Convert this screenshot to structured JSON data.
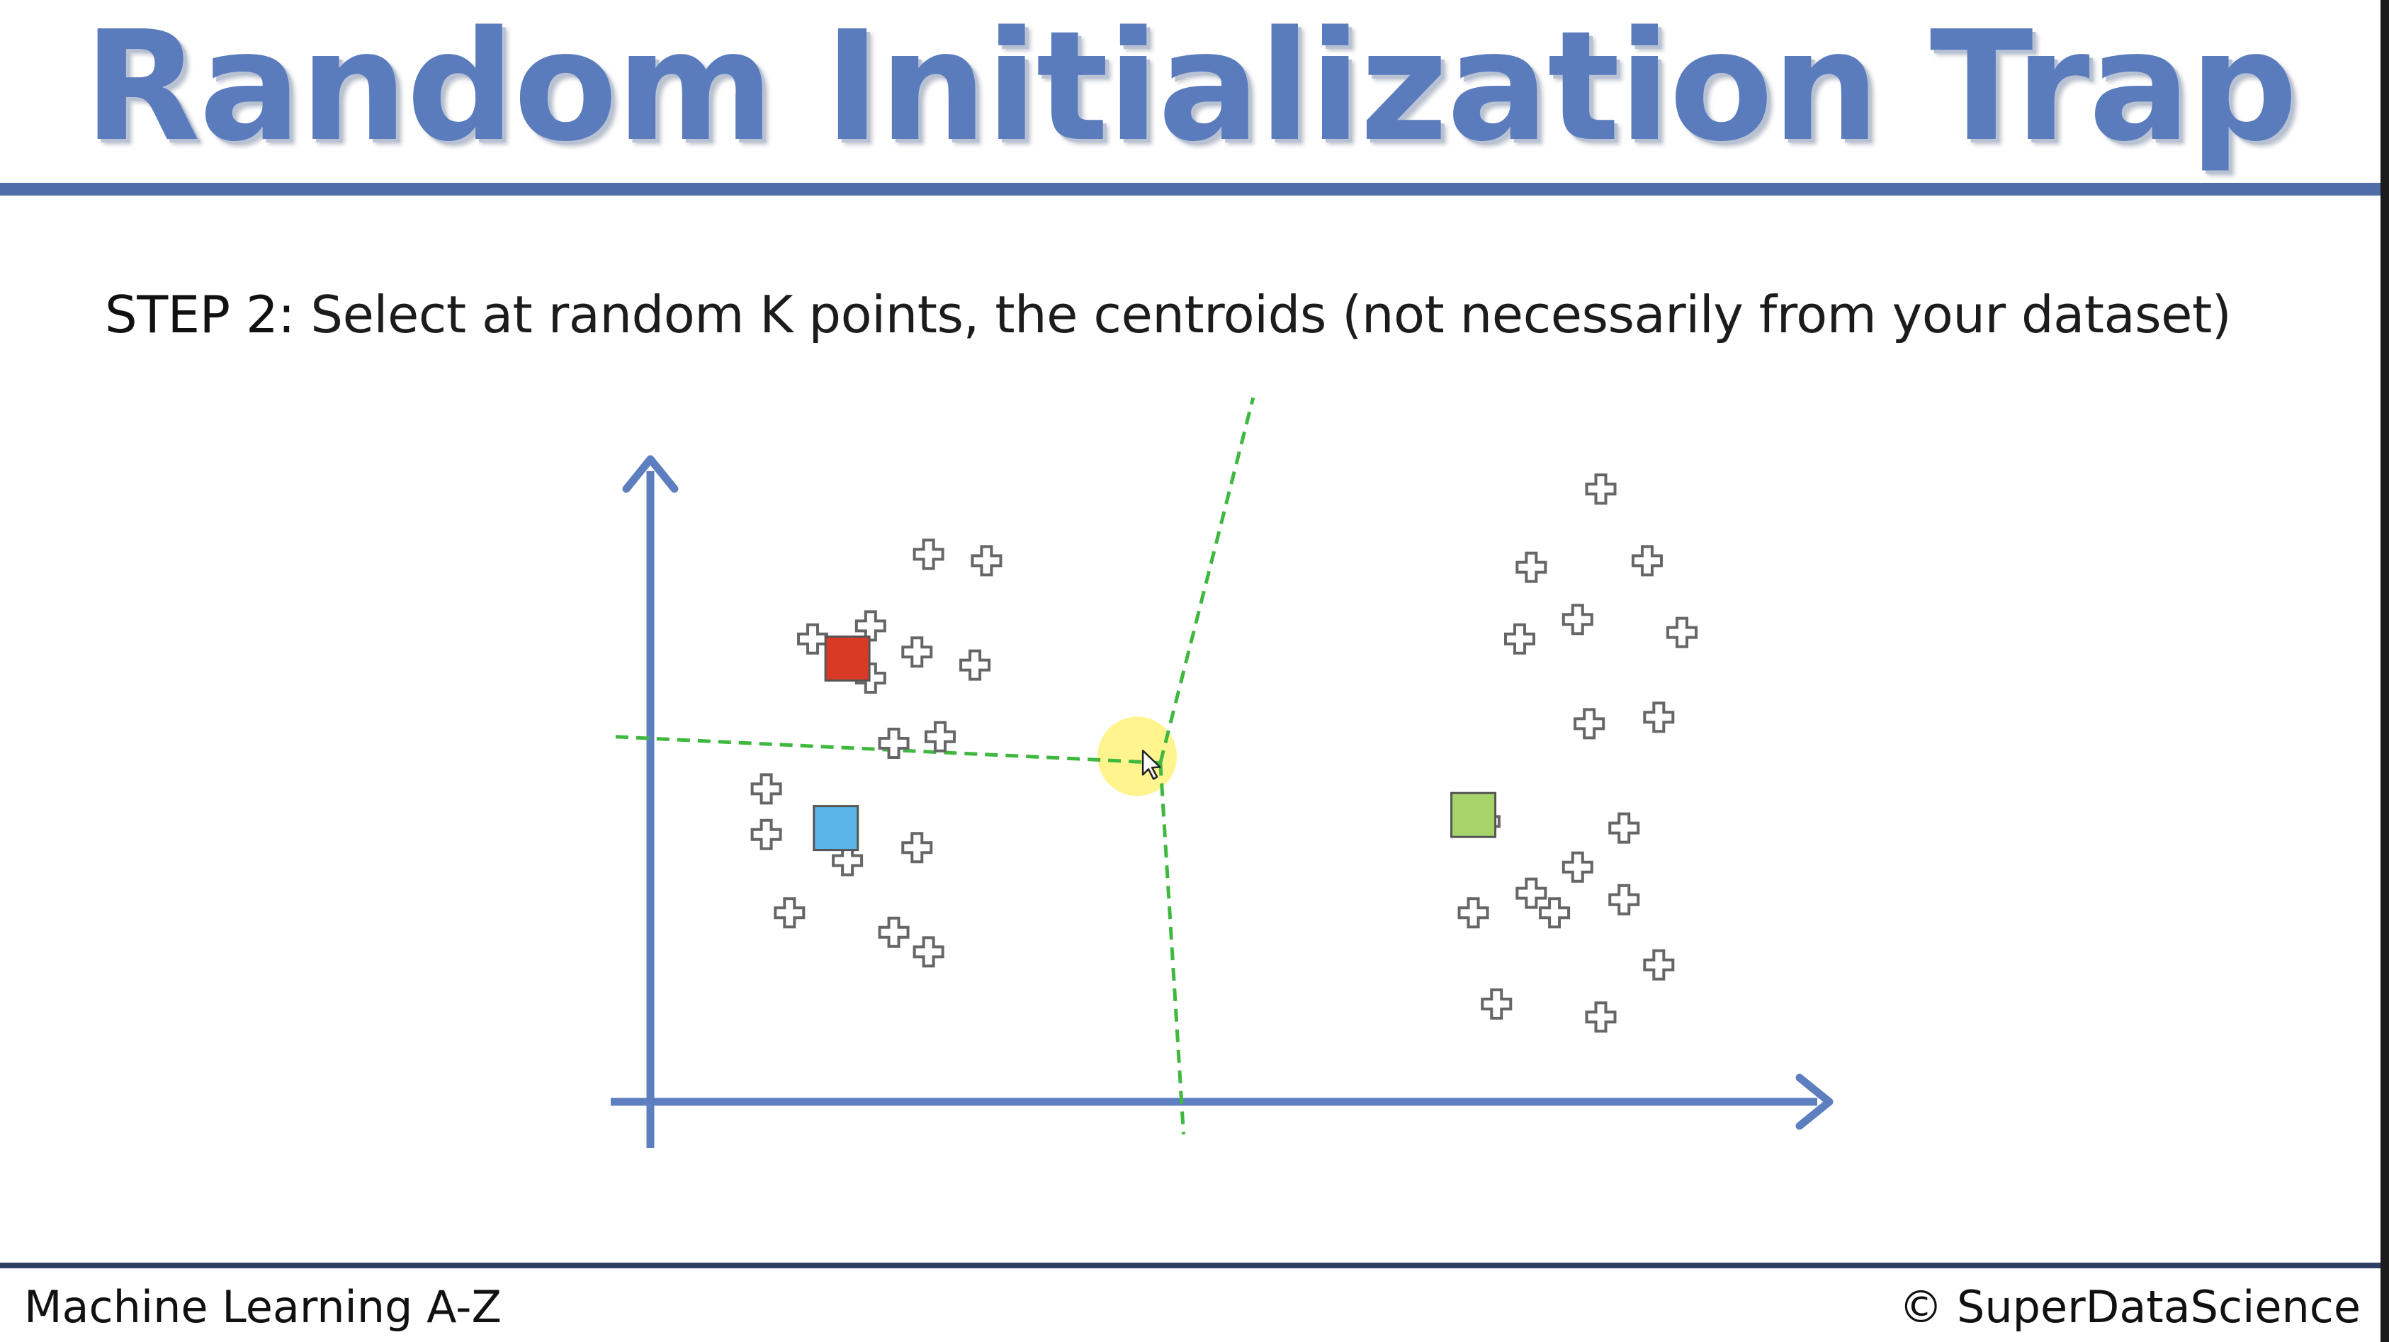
{
  "slide": {
    "title": "Random Initialization Trap",
    "step_label": "STEP 2:",
    "step_text": " Select at random K points, the centroids (not necessarily from your dataset)",
    "footer_left": "Machine Learning A-Z",
    "footer_right": "© SuperDataScience"
  },
  "colors": {
    "title": "#5a7cbd",
    "rule": "#4f6ea8",
    "axis": "#5d7fc0",
    "boundary": "#3fb83f",
    "centroid_red": "#d93a26",
    "centroid_blue": "#5ab6e8",
    "centroid_green": "#a6d46a",
    "cursor_highlight": "#fff27a"
  },
  "icons": [
    "plus-marker-icon",
    "mouse-pointer-icon"
  ],
  "chart_data": {
    "type": "scatter",
    "title": "",
    "xlabel": "",
    "ylabel": "",
    "xlim": [
      0,
      100
    ],
    "ylim": [
      0,
      100
    ],
    "grid": false,
    "series": [
      {
        "role": "data-points",
        "marker": "plus",
        "x": [
          24,
          29,
          14,
          23,
          28,
          19,
          19,
          21,
          25,
          10,
          10,
          23,
          17,
          21,
          12,
          24,
          82,
          76,
          86,
          80,
          89,
          75,
          81,
          87,
          72,
          80,
          84,
          76,
          84,
          71,
          78,
          87,
          73,
          82
        ],
        "y": [
          84,
          83,
          71,
          69,
          67,
          73,
          65,
          55,
          56,
          48,
          41,
          39,
          37,
          26,
          29,
          23,
          94,
          82,
          83,
          74,
          72,
          71,
          58,
          59,
          43,
          36,
          42,
          32,
          31,
          29,
          29,
          21,
          15,
          13
        ]
      },
      {
        "role": "centroids",
        "marker": "square",
        "points": [
          {
            "x": 17,
            "y": 68,
            "color": "red"
          },
          {
            "x": 16,
            "y": 42,
            "color": "blue"
          },
          {
            "x": 71,
            "y": 44,
            "color": "green"
          }
        ]
      }
    ],
    "boundaries": [
      {
        "from": [
          -3,
          56
        ],
        "to": [
          44,
          52
        ]
      },
      {
        "from": [
          44,
          52
        ],
        "to": [
          52,
          108
        ]
      },
      {
        "from": [
          44,
          52
        ],
        "to": [
          46,
          -5
        ]
      }
    ],
    "cursor": {
      "x": 42,
      "y": 53
    }
  }
}
